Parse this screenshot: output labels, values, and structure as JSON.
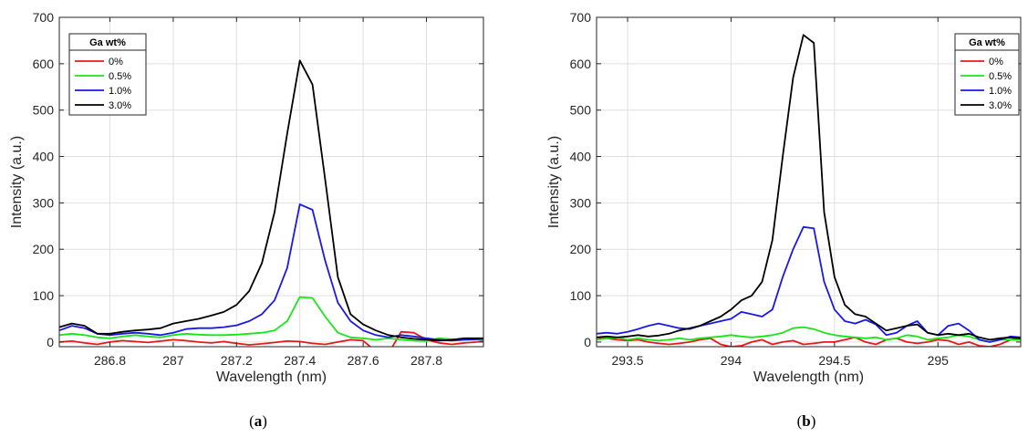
{
  "chart_data": [
    {
      "type": "line",
      "caption_open": "(",
      "caption_letter": "a",
      "caption_close": ")",
      "xlabel": "Wavelength (nm)",
      "ylabel": "Intensity (a.u.)",
      "xlim": [
        286.64,
        287.98
      ],
      "ylim": [
        -10,
        700
      ],
      "xticks": [
        286.8,
        287,
        287.2,
        287.4,
        287.6,
        287.8
      ],
      "xtick_labels": [
        "286.8",
        "287",
        "287.2",
        "287.4",
        "287.6",
        "287.8"
      ],
      "yticks": [
        0,
        100,
        200,
        300,
        400,
        500,
        600,
        700
      ],
      "ytick_labels": [
        "0",
        "100",
        "200",
        "300",
        "400",
        "500",
        "600",
        "700"
      ],
      "grid": true,
      "legend_title": "Ga wt%",
      "legend_position": "top-left",
      "series": [
        {
          "name": "0%",
          "color": "#e6191a",
          "x": [
            286.64,
            286.68,
            286.72,
            286.76,
            286.8,
            286.84,
            286.88,
            286.92,
            286.96,
            287.0,
            287.04,
            287.08,
            287.12,
            287.16,
            287.2,
            287.24,
            287.28,
            287.32,
            287.36,
            287.4,
            287.44,
            287.48,
            287.52,
            287.56,
            287.6,
            287.64,
            287.68,
            287.72,
            287.76,
            287.8,
            287.84,
            287.88,
            287.92,
            287.96,
            287.98
          ],
          "y": [
            0,
            2,
            -2,
            -5,
            0,
            3,
            1,
            -1,
            2,
            5,
            3,
            0,
            -2,
            1,
            -3,
            -6,
            -4,
            -1,
            2,
            1,
            -3,
            -5,
            0,
            5,
            3,
            -20,
            -25,
            22,
            20,
            5,
            -2,
            -5,
            -2,
            0,
            2
          ]
        },
        {
          "name": "0.5%",
          "color": "#19e619",
          "x": [
            286.64,
            286.68,
            286.72,
            286.76,
            286.8,
            286.84,
            286.88,
            286.92,
            286.96,
            287.0,
            287.04,
            287.08,
            287.12,
            287.16,
            287.2,
            287.24,
            287.28,
            287.32,
            287.36,
            287.4,
            287.44,
            287.48,
            287.52,
            287.56,
            287.6,
            287.64,
            287.68,
            287.72,
            287.76,
            287.8,
            287.84,
            287.88,
            287.92,
            287.96,
            287.98
          ],
          "y": [
            15,
            18,
            15,
            10,
            8,
            12,
            15,
            12,
            10,
            15,
            18,
            16,
            15,
            15,
            16,
            18,
            20,
            25,
            45,
            97,
            95,
            55,
            20,
            10,
            8,
            5,
            8,
            5,
            3,
            2,
            8,
            6,
            5,
            5,
            5
          ]
        },
        {
          "name": "1.0%",
          "color": "#1919e6",
          "x": [
            286.64,
            286.68,
            286.72,
            286.76,
            286.8,
            286.84,
            286.88,
            286.92,
            286.96,
            287.0,
            287.04,
            287.08,
            287.12,
            287.16,
            287.2,
            287.24,
            287.28,
            287.32,
            287.36,
            287.4,
            287.44,
            287.48,
            287.52,
            287.56,
            287.6,
            287.64,
            287.68,
            287.72,
            287.76,
            287.8,
            287.84,
            287.88,
            287.92,
            287.96,
            287.98
          ],
          "y": [
            25,
            35,
            30,
            18,
            15,
            18,
            20,
            18,
            15,
            20,
            28,
            30,
            30,
            32,
            36,
            45,
            60,
            90,
            160,
            297,
            285,
            175,
            85,
            45,
            25,
            15,
            10,
            15,
            12,
            8,
            5,
            3,
            5,
            6,
            7
          ]
        },
        {
          "name": "3.0%",
          "color": "#000000",
          "x": [
            286.64,
            286.68,
            286.72,
            286.76,
            286.8,
            286.84,
            286.88,
            286.92,
            286.96,
            287.0,
            287.04,
            287.08,
            287.12,
            287.16,
            287.2,
            287.24,
            287.28,
            287.32,
            287.36,
            287.4,
            287.44,
            287.48,
            287.52,
            287.56,
            287.6,
            287.64,
            287.68,
            287.72,
            287.76,
            287.8,
            287.84,
            287.88,
            287.92,
            287.96,
            287.98
          ],
          "y": [
            32,
            40,
            35,
            18,
            18,
            22,
            25,
            27,
            30,
            40,
            45,
            50,
            57,
            65,
            80,
            110,
            170,
            280,
            450,
            607,
            555,
            350,
            140,
            60,
            38,
            25,
            15,
            10,
            7,
            5,
            3,
            5,
            8,
            8,
            8
          ]
        }
      ]
    },
    {
      "type": "line",
      "caption_open": "(",
      "caption_letter": "b",
      "caption_close": ")",
      "xlabel": "Wavelength (nm)",
      "ylabel": "Intensity (a.u.)",
      "xlim": [
        293.35,
        295.4
      ],
      "ylim": [
        -10,
        700
      ],
      "xticks": [
        293.5,
        294,
        294.5,
        295
      ],
      "xtick_labels": [
        "293.5",
        "294",
        "294.5",
        "295"
      ],
      "yticks": [
        0,
        100,
        200,
        300,
        400,
        500,
        600,
        700
      ],
      "ytick_labels": [
        "0",
        "100",
        "200",
        "300",
        "400",
        "500",
        "600",
        "700"
      ],
      "grid": true,
      "legend_title": "Ga wt%",
      "legend_position": "top-right",
      "series": [
        {
          "name": "0%",
          "color": "#e6191a",
          "x": [
            293.35,
            293.4,
            293.45,
            293.5,
            293.55,
            293.6,
            293.65,
            293.7,
            293.75,
            293.8,
            293.85,
            293.9,
            293.95,
            294.0,
            294.05,
            294.1,
            294.15,
            294.2,
            294.25,
            294.3,
            294.35,
            294.4,
            294.45,
            294.5,
            294.55,
            294.6,
            294.65,
            294.7,
            294.75,
            294.8,
            294.85,
            294.9,
            294.95,
            295.0,
            295.05,
            295.1,
            295.15,
            295.2,
            295.25,
            295.3,
            295.35,
            295.4
          ],
          "y": [
            10,
            8,
            5,
            3,
            5,
            0,
            -3,
            -5,
            -3,
            0,
            5,
            8,
            -5,
            -10,
            -8,
            0,
            5,
            -5,
            0,
            3,
            -5,
            -3,
            0,
            0,
            5,
            10,
            0,
            -5,
            5,
            8,
            0,
            -3,
            0,
            5,
            3,
            -5,
            0,
            -8,
            -10,
            -5,
            5,
            8
          ]
        },
        {
          "name": "0.5%",
          "color": "#19e619",
          "x": [
            293.35,
            293.4,
            293.45,
            293.5,
            293.55,
            293.6,
            293.65,
            293.7,
            293.75,
            293.8,
            293.85,
            293.9,
            293.95,
            294.0,
            294.05,
            294.1,
            294.15,
            294.2,
            294.25,
            294.3,
            294.35,
            294.4,
            294.45,
            294.5,
            294.55,
            294.6,
            294.65,
            294.7,
            294.75,
            294.8,
            294.85,
            294.9,
            294.95,
            295.0,
            295.05,
            295.1,
            295.15,
            295.2,
            295.25,
            295.3,
            295.35,
            295.4
          ],
          "y": [
            5,
            8,
            10,
            5,
            8,
            5,
            3,
            5,
            8,
            5,
            8,
            10,
            12,
            15,
            12,
            10,
            12,
            15,
            20,
            30,
            32,
            28,
            20,
            15,
            12,
            10,
            8,
            10,
            5,
            8,
            15,
            12,
            5,
            8,
            10,
            15,
            12,
            5,
            0,
            5,
            5,
            5
          ]
        },
        {
          "name": "1.0%",
          "color": "#1919e6",
          "x": [
            293.35,
            293.4,
            293.45,
            293.5,
            293.55,
            293.6,
            293.65,
            293.7,
            293.75,
            293.8,
            293.85,
            293.9,
            293.95,
            294.0,
            294.05,
            294.1,
            294.15,
            294.2,
            294.25,
            294.3,
            294.35,
            294.4,
            294.45,
            294.5,
            294.55,
            294.6,
            294.65,
            294.7,
            294.75,
            294.8,
            294.85,
            294.9,
            294.95,
            295.0,
            295.05,
            295.1,
            295.15,
            295.2,
            295.25,
            295.3,
            295.35,
            295.4
          ],
          "y": [
            18,
            20,
            18,
            22,
            28,
            35,
            40,
            35,
            30,
            28,
            35,
            40,
            45,
            50,
            65,
            60,
            55,
            70,
            140,
            200,
            248,
            245,
            130,
            70,
            45,
            40,
            48,
            38,
            15,
            20,
            35,
            45,
            20,
            15,
            35,
            40,
            25,
            5,
            0,
            5,
            12,
            10
          ]
        },
        {
          "name": "3.0%",
          "color": "#000000",
          "x": [
            293.35,
            293.4,
            293.45,
            293.5,
            293.55,
            293.6,
            293.65,
            293.7,
            293.75,
            293.8,
            293.85,
            293.9,
            293.95,
            294.0,
            294.05,
            294.1,
            294.15,
            294.2,
            294.25,
            294.3,
            294.35,
            294.4,
            294.45,
            294.5,
            294.55,
            294.6,
            294.65,
            294.7,
            294.75,
            294.8,
            294.85,
            294.9,
            294.95,
            295.0,
            295.05,
            295.1,
            295.15,
            295.2,
            295.25,
            295.3,
            295.35,
            295.4
          ],
          "y": [
            10,
            12,
            10,
            12,
            15,
            12,
            14,
            18,
            25,
            30,
            35,
            45,
            55,
            70,
            90,
            100,
            130,
            220,
            400,
            570,
            662,
            645,
            280,
            140,
            80,
            60,
            55,
            40,
            25,
            30,
            35,
            38,
            20,
            15,
            18,
            15,
            18,
            10,
            5,
            8,
            10,
            8
          ]
        }
      ]
    }
  ]
}
